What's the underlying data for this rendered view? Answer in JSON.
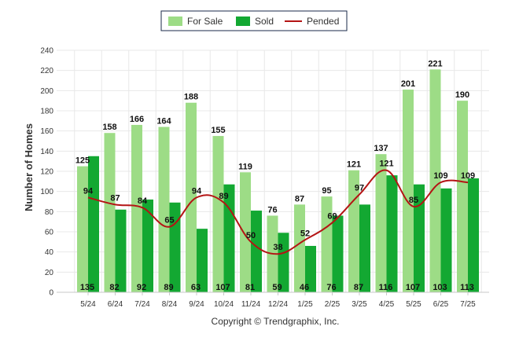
{
  "chart_data": {
    "type": "bar",
    "categories": [
      "5/24",
      "6/24",
      "7/24",
      "8/24",
      "9/24",
      "10/24",
      "11/24",
      "12/24",
      "1/25",
      "2/25",
      "3/25",
      "4/25",
      "5/25",
      "6/25",
      "7/25"
    ],
    "series": [
      {
        "name": "For Sale",
        "type": "bar",
        "color": "#9ddc86",
        "values": [
          125,
          158,
          166,
          164,
          188,
          155,
          119,
          76,
          87,
          95,
          121,
          137,
          201,
          221,
          190
        ]
      },
      {
        "name": "Sold",
        "type": "bar",
        "color": "#13a832",
        "values": [
          135,
          82,
          92,
          89,
          63,
          107,
          81,
          59,
          46,
          76,
          87,
          116,
          107,
          103,
          113
        ]
      },
      {
        "name": "Pended",
        "type": "line",
        "color": "#b41414",
        "values": [
          94,
          87,
          84,
          65,
          94,
          89,
          50,
          38,
          52,
          69,
          97,
          121,
          85,
          109,
          109
        ]
      }
    ],
    "xlabel": "",
    "ylabel": "Number of Homes",
    "ylim": [
      0,
      240
    ],
    "yticks": [
      0,
      20,
      40,
      60,
      80,
      100,
      120,
      140,
      160,
      180,
      200,
      220,
      240
    ],
    "grid": true,
    "legend": "top-center"
  },
  "copyright": "Copyright © Trendgraphix, Inc."
}
